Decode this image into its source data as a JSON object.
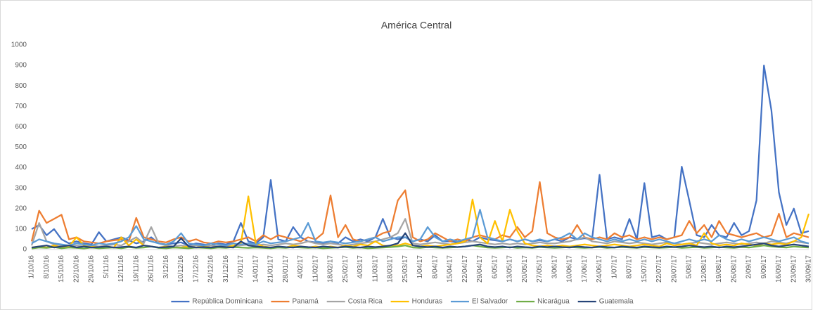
{
  "chart_data": {
    "type": "line",
    "title": "América Central",
    "categories": [
      "1/10/16",
      null,
      "8/10/16",
      null,
      "15/10/16",
      null,
      "22/10/16",
      null,
      "29/10/16",
      null,
      "5/11/16",
      null,
      "12/11/16",
      null,
      "19/11/16",
      null,
      "26/11/16",
      null,
      "3/12/16",
      null,
      "10/12/16",
      null,
      "17/12/16",
      null,
      "24/12/16",
      null,
      "31/12/16",
      null,
      "7/01/17",
      null,
      "14/01/17",
      null,
      "21/01/17",
      null,
      "28/01/17",
      null,
      "4/02/17",
      null,
      "11/02/17",
      null,
      "18/02/17",
      null,
      "25/02/17",
      null,
      "4/03/17",
      null,
      "11/03/17",
      null,
      "18/03/17",
      null,
      "25/03/17",
      null,
      "1/04/17",
      null,
      "8/04/17",
      null,
      "15/04/17",
      null,
      "22/04/17",
      null,
      "29/04/17",
      null,
      "6/05/17",
      null,
      "13/05/17",
      null,
      "20/05/17",
      null,
      "27/05/17",
      null,
      "3/06/17",
      null,
      "10/06/17",
      null,
      "17/06/17",
      null,
      "24/06/17",
      null,
      "1/07/17",
      null,
      "8/07/17",
      null,
      "15/07/17",
      null,
      "22/07/17",
      null,
      "29/07/17",
      null,
      "5/08/17",
      null,
      "12/08/17",
      null,
      "19/08/17",
      null,
      "26/08/17",
      null,
      "2/09/17",
      null,
      "9/09/17",
      null,
      "16/09/17",
      null,
      "23/09/17",
      null,
      "30/09/17"
    ],
    "series": [
      {
        "name": "República Dominicana",
        "color": "#4472c4",
        "values": [
          100,
          120,
          70,
          100,
          50,
          30,
          40,
          30,
          25,
          85,
          40,
          50,
          60,
          45,
          30,
          40,
          60,
          30,
          25,
          30,
          35,
          20,
          30,
          25,
          20,
          30,
          25,
          40,
          130,
          40,
          30,
          60,
          340,
          50,
          40,
          110,
          60,
          40,
          35,
          30,
          40,
          30,
          60,
          40,
          50,
          40,
          60,
          150,
          60,
          50,
          60,
          40,
          50,
          40,
          70,
          40,
          40,
          35,
          50,
          40,
          60,
          50,
          45,
          40,
          50,
          40,
          50,
          40,
          45,
          40,
          50,
          40,
          60,
          50,
          55,
          50,
          365,
          50,
          60,
          50,
          150,
          50,
          325,
          60,
          70,
          50,
          60,
          405,
          240,
          70,
          60,
          120,
          70,
          60,
          130,
          70,
          90,
          240,
          900,
          680,
          280,
          120,
          200,
          80,
          90
        ]
      },
      {
        "name": "Panamá",
        "color": "#ed7d31",
        "values": [
          40,
          190,
          130,
          150,
          170,
          50,
          60,
          40,
          35,
          30,
          40,
          45,
          50,
          40,
          155,
          60,
          50,
          40,
          35,
          50,
          60,
          40,
          50,
          35,
          30,
          40,
          35,
          40,
          50,
          60,
          40,
          70,
          50,
          70,
          60,
          50,
          40,
          60,
          50,
          80,
          265,
          60,
          120,
          50,
          40,
          50,
          60,
          80,
          90,
          240,
          290,
          60,
          40,
          50,
          80,
          60,
          40,
          50,
          40,
          60,
          70,
          60,
          50,
          70,
          60,
          110,
          60,
          90,
          330,
          80,
          60,
          50,
          60,
          120,
          60,
          50,
          60,
          50,
          80,
          60,
          70,
          50,
          60,
          50,
          60,
          50,
          60,
          70,
          140,
          80,
          120,
          60,
          140,
          80,
          70,
          60,
          70,
          80,
          60,
          70,
          175,
          60,
          80,
          70,
          60
        ]
      },
      {
        "name": "Costa Rica",
        "color": "#a5a5a5",
        "values": [
          20,
          130,
          40,
          25,
          20,
          15,
          20,
          15,
          20,
          15,
          20,
          25,
          20,
          40,
          60,
          30,
          110,
          30,
          20,
          15,
          20,
          15,
          20,
          15,
          20,
          15,
          20,
          15,
          20,
          25,
          20,
          25,
          20,
          25,
          30,
          25,
          30,
          40,
          30,
          25,
          30,
          25,
          20,
          25,
          30,
          35,
          40,
          50,
          60,
          80,
          150,
          30,
          25,
          30,
          35,
          30,
          25,
          30,
          35,
          40,
          35,
          30,
          25,
          30,
          25,
          30,
          25,
          30,
          35,
          30,
          30,
          35,
          40,
          50,
          60,
          40,
          35,
          30,
          40,
          35,
          30,
          35,
          30,
          25,
          30,
          35,
          30,
          25,
          30,
          35,
          30,
          25,
          30,
          35,
          30,
          25,
          30,
          35,
          30,
          40,
          35,
          30,
          40,
          35,
          30
        ]
      },
      {
        "name": "Honduras",
        "color": "#ffc000",
        "values": [
          10,
          15,
          10,
          20,
          10,
          15,
          60,
          20,
          15,
          10,
          15,
          10,
          60,
          20,
          50,
          20,
          15,
          10,
          15,
          10,
          10,
          15,
          10,
          15,
          10,
          15,
          10,
          20,
          30,
          260,
          30,
          15,
          10,
          15,
          10,
          20,
          15,
          10,
          15,
          10,
          15,
          10,
          20,
          15,
          25,
          20,
          40,
          20,
          15,
          20,
          30,
          20,
          15,
          20,
          15,
          20,
          25,
          30,
          40,
          245,
          60,
          30,
          140,
          40,
          195,
          90,
          30,
          20,
          15,
          20,
          15,
          20,
          15,
          20,
          25,
          20,
          15,
          20,
          25,
          20,
          15,
          20,
          25,
          20,
          15,
          30,
          20,
          25,
          30,
          20,
          80,
          30,
          20,
          25,
          20,
          30,
          25,
          20,
          30,
          25,
          30,
          25,
          40,
          60,
          175
        ]
      },
      {
        "name": "El Salvador",
        "color": "#5b9bd5",
        "values": [
          30,
          50,
          40,
          30,
          25,
          20,
          30,
          25,
          20,
          30,
          25,
          30,
          40,
          60,
          115,
          50,
          40,
          30,
          25,
          40,
          80,
          30,
          25,
          20,
          30,
          25,
          20,
          30,
          25,
          30,
          25,
          40,
          30,
          35,
          40,
          50,
          60,
          130,
          40,
          35,
          40,
          35,
          30,
          35,
          40,
          50,
          60,
          40,
          50,
          60,
          60,
          40,
          50,
          110,
          60,
          40,
          50,
          40,
          50,
          60,
          195,
          60,
          50,
          40,
          50,
          40,
          50,
          40,
          50,
          40,
          50,
          60,
          80,
          50,
          80,
          60,
          50,
          40,
          50,
          40,
          50,
          40,
          50,
          40,
          50,
          40,
          30,
          40,
          50,
          40,
          50,
          40,
          70,
          50,
          40,
          50,
          40,
          50,
          60,
          50,
          40,
          50,
          60,
          40,
          30
        ]
      },
      {
        "name": "Nicarágua",
        "color": "#70ad47",
        "values": [
          5,
          10,
          8,
          12,
          6,
          10,
          8,
          5,
          10,
          6,
          8,
          10,
          6,
          12,
          8,
          10,
          15,
          8,
          6,
          10,
          8,
          6,
          10,
          8,
          6,
          10,
          8,
          12,
          10,
          8,
          10,
          8,
          6,
          10,
          8,
          12,
          10,
          8,
          10,
          6,
          8,
          10,
          12,
          8,
          10,
          6,
          8,
          10,
          12,
          15,
          20,
          10,
          8,
          12,
          10,
          8,
          10,
          12,
          15,
          20,
          15,
          10,
          8,
          10,
          12,
          8,
          10,
          8,
          12,
          10,
          8,
          10,
          12,
          10,
          8,
          10,
          12,
          8,
          10,
          12,
          10,
          8,
          12,
          10,
          8,
          10,
          12,
          8,
          10,
          12,
          8,
          10,
          12,
          10,
          8,
          12,
          10,
          15,
          20,
          15,
          12,
          10,
          15,
          12,
          10
        ]
      },
      {
        "name": "Guatemala",
        "color": "#264478",
        "values": [
          10,
          15,
          20,
          10,
          15,
          20,
          10,
          15,
          10,
          12,
          15,
          10,
          12,
          15,
          10,
          20,
          15,
          10,
          12,
          15,
          55,
          15,
          10,
          12,
          10,
          15,
          12,
          10,
          40,
          20,
          15,
          12,
          10,
          15,
          12,
          10,
          15,
          12,
          10,
          15,
          12,
          10,
          15,
          12,
          10,
          15,
          12,
          15,
          20,
          30,
          80,
          20,
          15,
          12,
          15,
          10,
          15,
          12,
          15,
          20,
          25,
          15,
          12,
          15,
          10,
          15,
          12,
          10,
          15,
          12,
          15,
          12,
          10,
          15,
          12,
          10,
          15,
          12,
          10,
          15,
          12,
          10,
          15,
          12,
          10,
          15,
          12,
          15,
          20,
          15,
          12,
          15,
          10,
          15,
          12,
          15,
          20,
          25,
          30,
          20,
          15,
          20,
          25,
          20,
          15
        ]
      }
    ],
    "ylim": [
      0,
      1000
    ],
    "yticks": [
      0,
      100,
      200,
      300,
      400,
      500,
      600,
      700,
      800,
      900,
      1000
    ],
    "grid": false,
    "legend": "bottom"
  }
}
